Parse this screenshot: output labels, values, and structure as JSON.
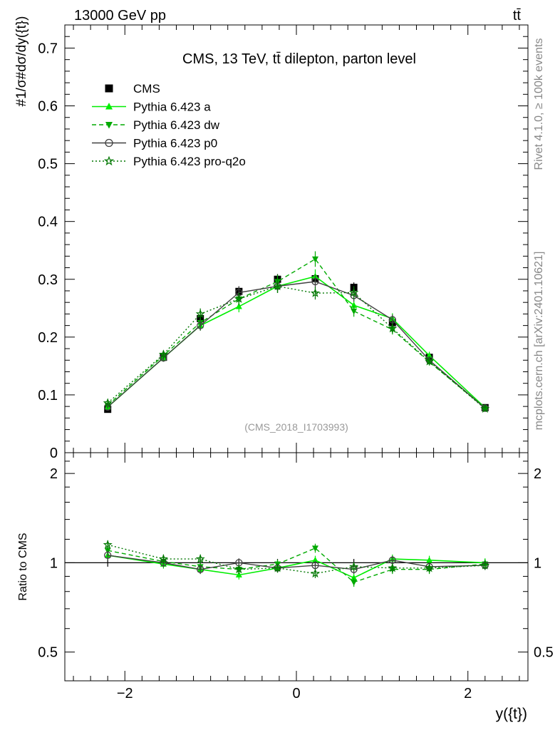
{
  "header": {
    "beam": "13000 GeV pp",
    "process": "tt̄"
  },
  "side_labels": {
    "rivet": "Rivet 4.1.0, ≥ 100k events",
    "mcplots": "mcplots.cern.ch [arXiv:2401.10621]"
  },
  "chart_data": [
    {
      "type": "line",
      "title": "CMS, 13 TeV, tt̄ dilepton, parton level",
      "analysis_id": "(CMS_2018_I1703993)",
      "ylabel": "#1/σ#dσ/dy({t})",
      "xlabel": "y({t})",
      "xlim": [
        -2.7,
        2.7
      ],
      "ylim": [
        0,
        0.74
      ],
      "xticks": [
        -2,
        0,
        2
      ],
      "yticks": [
        0,
        0.1,
        0.2,
        0.3,
        0.4,
        0.5,
        0.6,
        0.7
      ],
      "ytick_labels": [
        "0",
        "0.1",
        "0.2",
        "0.3",
        "0.4",
        "0.5",
        "0.6",
        "0.7"
      ],
      "x": [
        -2.2,
        -1.55,
        -1.12,
        -0.67,
        -0.22,
        0.22,
        0.67,
        1.12,
        1.55,
        2.2
      ],
      "legend": [
        "CMS",
        "Pythia 6.423 a",
        "Pythia 6.423 dw",
        "Pythia 6.423 p0",
        "Pythia 6.423 pro-q2o"
      ],
      "series": [
        {
          "name": "CMS",
          "color": "#000000",
          "values": [
            0.075,
            0.165,
            0.232,
            0.279,
            0.3,
            0.301,
            0.286,
            0.225,
            0.165,
            0.078
          ]
        },
        {
          "name": "Pythia 6.423 a",
          "color": "#00ee00",
          "values": [
            0.079,
            0.164,
            0.22,
            0.253,
            0.288,
            0.305,
            0.255,
            0.232,
            0.168,
            0.078
          ]
        },
        {
          "name": "Pythia 6.423 dw",
          "color": "#00aa00",
          "values": [
            0.082,
            0.168,
            0.225,
            0.266,
            0.296,
            0.335,
            0.245,
            0.213,
            0.157,
            0.077
          ]
        },
        {
          "name": "Pythia 6.423 p0",
          "color": "#404040",
          "values": [
            0.079,
            0.164,
            0.22,
            0.277,
            0.288,
            0.296,
            0.272,
            0.23,
            0.16,
            0.077
          ]
        },
        {
          "name": "Pythia 6.423 pro-q2o",
          "color": "#007700",
          "values": [
            0.086,
            0.17,
            0.24,
            0.266,
            0.288,
            0.276,
            0.277,
            0.215,
            0.158,
            0.076
          ]
        }
      ]
    },
    {
      "type": "line",
      "ylabel": "Ratio to CMS",
      "xlim": [
        -2.7,
        2.7
      ],
      "ylim": [
        0.4,
        2.35
      ],
      "yscale": "log",
      "yticks": [
        0.5,
        1,
        2
      ],
      "ytick_labels": [
        "0.5",
        "1",
        "2"
      ],
      "right_ytick_labels": [
        "0.5",
        "1",
        "2"
      ],
      "xtick_labels": [
        "−2",
        "0",
        "2"
      ],
      "x": [
        -2.2,
        -1.55,
        -1.12,
        -0.67,
        -0.22,
        0.22,
        0.67,
        1.12,
        1.55,
        2.2
      ],
      "series": [
        {
          "name": "Pythia 6.423 a",
          "values": [
            1.06,
            0.99,
            0.95,
            0.91,
            0.96,
            1.02,
            0.89,
            1.03,
            1.02,
            1.0
          ]
        },
        {
          "name": "Pythia 6.423 dw",
          "values": [
            1.1,
            1.01,
            0.97,
            0.95,
            0.99,
            1.12,
            0.86,
            0.95,
            0.95,
            0.99
          ]
        },
        {
          "name": "Pythia 6.423 p0",
          "values": [
            1.06,
            1.0,
            0.95,
            1.0,
            0.96,
            0.98,
            0.95,
            1.02,
            0.97,
            0.98
          ]
        },
        {
          "name": "Pythia 6.423 pro-q2o",
          "values": [
            1.15,
            1.03,
            1.03,
            0.95,
            0.96,
            0.92,
            0.97,
            0.96,
            0.96,
            0.98
          ]
        }
      ]
    }
  ]
}
